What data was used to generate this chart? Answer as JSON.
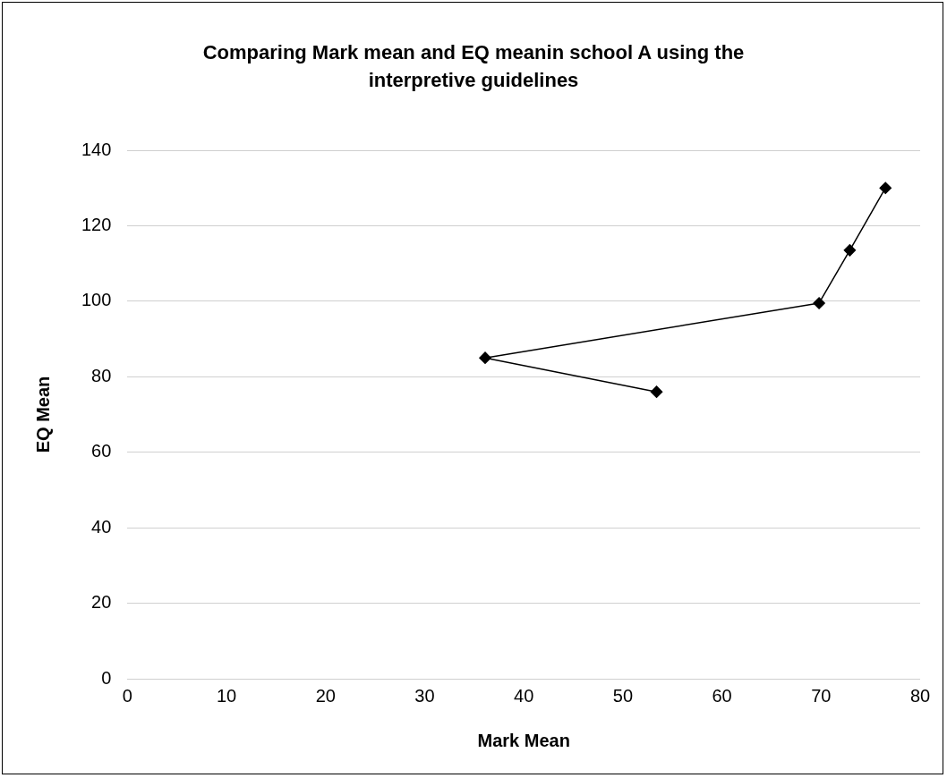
{
  "chart_data": {
    "type": "line",
    "title": "Comparing Mark mean and EQ meanin school A using the interpretive guidelines",
    "xlabel": "Mark Mean",
    "ylabel": "EQ Mean",
    "series": [
      {
        "color": "#000000",
        "x": [
          53.4,
          36.1,
          69.8,
          72.9,
          76.5
        ],
        "values": [
          76,
          85,
          99.5,
          113.5,
          130
        ]
      }
    ],
    "xlim": [
      0,
      80
    ],
    "xticks": [
      0,
      10,
      20,
      30,
      40,
      50,
      60,
      70,
      80
    ],
    "ylim": [
      0,
      140
    ],
    "yticks": [
      0,
      20,
      40,
      60,
      80,
      100,
      120,
      140
    ],
    "grid": "y",
    "legend": false,
    "marker": "diamond",
    "line_style": "solid"
  }
}
